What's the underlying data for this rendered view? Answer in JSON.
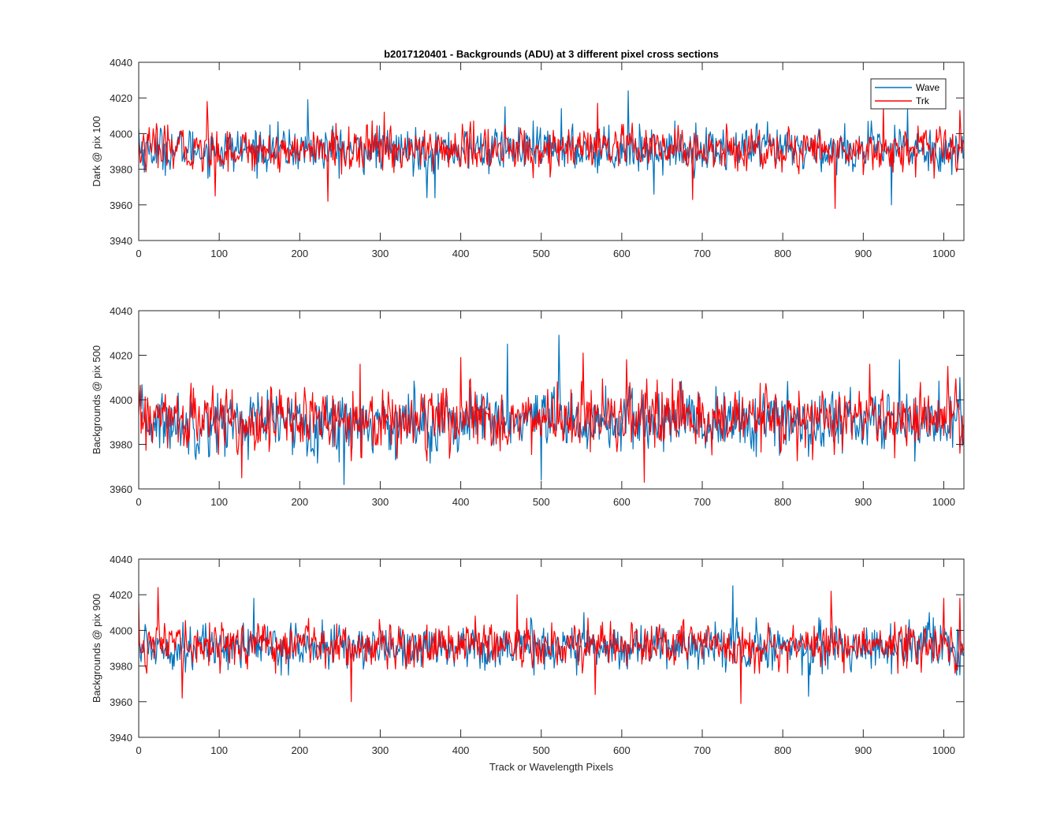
{
  "chart_data": [
    {
      "type": "line",
      "title": "b2017120401 - Backgrounds (ADU) at 3 different pixel cross sections",
      "xlabel": "",
      "ylabel": "Dark @ pix 100",
      "xlim": [
        0,
        1025
      ],
      "ylim": [
        3940,
        4040
      ],
      "xticks": [
        0,
        100,
        200,
        300,
        400,
        500,
        600,
        700,
        800,
        900,
        1000
      ],
      "yticks": [
        3940,
        3960,
        3980,
        4000,
        4020,
        4040
      ],
      "legend": {
        "position": "top-right",
        "entries": [
          "Wave",
          "Trk"
        ]
      },
      "series": [
        {
          "name": "Wave",
          "color": "#0072bd",
          "mean": 3991,
          "spread": 7,
          "peaks": [
            [
              0,
              4003
            ],
            [
              210,
              4019
            ],
            [
              358,
              3964
            ],
            [
              368,
              3964
            ],
            [
              455,
              4015
            ],
            [
              525,
              4014
            ],
            [
              608,
              4024
            ],
            [
              640,
              3966
            ],
            [
              935,
              3960
            ],
            [
              955,
              4014
            ],
            [
              1010,
              3977
            ]
          ]
        },
        {
          "name": "Trk",
          "color": "#ff0000",
          "mean": 3991,
          "spread": 7,
          "peaks": [
            [
              85,
              4018
            ],
            [
              95,
              3965
            ],
            [
              235,
              3962
            ],
            [
              305,
              4012
            ],
            [
              570,
              4017
            ],
            [
              688,
              3963
            ],
            [
              865,
              3958
            ],
            [
              925,
              4015
            ],
            [
              1000,
              3996
            ],
            [
              1020,
              4013
            ]
          ]
        }
      ]
    },
    {
      "type": "line",
      "xlabel": "",
      "ylabel": "Backgrounds @ pix 500",
      "xlim": [
        0,
        1025
      ],
      "ylim": [
        3960,
        4040
      ],
      "xticks": [
        0,
        100,
        200,
        300,
        400,
        500,
        600,
        700,
        800,
        900,
        1000
      ],
      "yticks": [
        3960,
        3980,
        4000,
        4020,
        4040
      ],
      "series": [
        {
          "name": "Wave",
          "color": "#0072bd",
          "mean": 3990,
          "spread": 8,
          "peaks": [
            [
              0,
              4004
            ],
            [
              255,
              3962
            ],
            [
              458,
              4025
            ],
            [
              500,
              3964
            ],
            [
              522,
              4029
            ],
            [
              945,
              4018
            ],
            [
              1020,
              4010
            ]
          ]
        },
        {
          "name": "Trk",
          "color": "#ff0000",
          "mean": 3991,
          "spread": 8,
          "peaks": [
            [
              128,
              3965
            ],
            [
              275,
              4016
            ],
            [
              400,
              4019
            ],
            [
              552,
              4021
            ],
            [
              606,
              4018
            ],
            [
              628,
              3963
            ],
            [
              908,
              4016
            ],
            [
              1005,
              4015
            ],
            [
              1020,
              3976
            ]
          ]
        }
      ]
    },
    {
      "type": "line",
      "xlabel": "Track or Wavelength Pixels",
      "ylabel": "Backgrounds @ pix 900",
      "xlim": [
        0,
        1025
      ],
      "ylim": [
        3940,
        4040
      ],
      "xticks": [
        0,
        100,
        200,
        300,
        400,
        500,
        600,
        700,
        800,
        900,
        1000
      ],
      "yticks": [
        3940,
        3960,
        3980,
        4000,
        4020,
        4040
      ],
      "series": [
        {
          "name": "Wave",
          "color": "#0072bd",
          "mean": 3991,
          "spread": 7,
          "peaks": [
            [
              0,
              3998
            ],
            [
              143,
              4018
            ],
            [
              553,
              4010
            ],
            [
              738,
              4025
            ],
            [
              832,
              3963
            ],
            [
              982,
              4010
            ],
            [
              1020,
              3975
            ]
          ]
        },
        {
          "name": "Trk",
          "color": "#ff0000",
          "mean": 3992,
          "spread": 7,
          "peaks": [
            [
              0,
              4016
            ],
            [
              24,
              4024
            ],
            [
              54,
              3962
            ],
            [
              264,
              3960
            ],
            [
              470,
              4020
            ],
            [
              567,
              3964
            ],
            [
              748,
              3959
            ],
            [
              860,
              4022
            ],
            [
              1000,
              4018
            ],
            [
              1020,
              4018
            ]
          ]
        }
      ]
    }
  ]
}
